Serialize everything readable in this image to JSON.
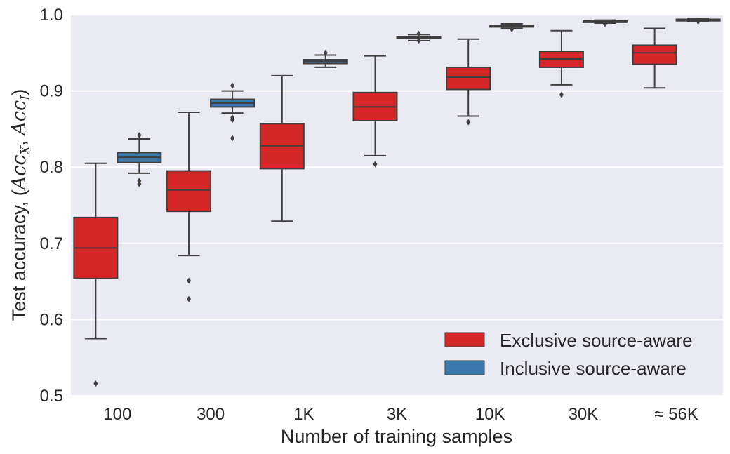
{
  "chart_data": {
    "type": "box",
    "xlabel": "Number of training samples",
    "ylabel": {
      "prefix": "Test accuracy, (",
      "acc1": "Acc",
      "sub1": "X",
      "sep": ", ",
      "acc2": "Acc",
      "sub2": "I",
      "suffix": ")"
    },
    "ylim": [
      0.5,
      1.0
    ],
    "yticks": [
      "0.5",
      "0.6",
      "0.7",
      "0.8",
      "0.9",
      "1.0"
    ],
    "grid": true,
    "legend_position": "lower-right",
    "categories": [
      "100",
      "300",
      "1K",
      "3K",
      "10K",
      "30K",
      "≈ 56K"
    ],
    "series": [
      {
        "name": "Exclusive source-aware",
        "color": "#d62728",
        "boxes": [
          {
            "whislo": 0.575,
            "q1": 0.654,
            "med": 0.694,
            "q3": 0.734,
            "whishi": 0.805,
            "fliers": [
              0.516
            ]
          },
          {
            "whislo": 0.684,
            "q1": 0.742,
            "med": 0.77,
            "q3": 0.795,
            "whishi": 0.872,
            "fliers": [
              0.651,
              0.627
            ]
          },
          {
            "whislo": 0.729,
            "q1": 0.798,
            "med": 0.828,
            "q3": 0.857,
            "whishi": 0.92,
            "fliers": []
          },
          {
            "whislo": 0.815,
            "q1": 0.861,
            "med": 0.879,
            "q3": 0.898,
            "whishi": 0.946,
            "fliers": [
              0.804
            ]
          },
          {
            "whislo": 0.867,
            "q1": 0.902,
            "med": 0.918,
            "q3": 0.931,
            "whishi": 0.968,
            "fliers": [
              0.859
            ]
          },
          {
            "whislo": 0.908,
            "q1": 0.931,
            "med": 0.942,
            "q3": 0.952,
            "whishi": 0.979,
            "fliers": [
              0.895
            ]
          },
          {
            "whislo": 0.904,
            "q1": 0.935,
            "med": 0.95,
            "q3": 0.96,
            "whishi": 0.982,
            "fliers": []
          }
        ]
      },
      {
        "name": "Inclusive source-aware",
        "color": "#3b78b0",
        "boxes": [
          {
            "whislo": 0.792,
            "q1": 0.806,
            "med": 0.813,
            "q3": 0.819,
            "whishi": 0.837,
            "fliers": [
              0.842,
              0.782,
              0.778
            ]
          },
          {
            "whislo": 0.871,
            "q1": 0.879,
            "med": 0.884,
            "q3": 0.889,
            "whishi": 0.9,
            "fliers": [
              0.907,
              0.865,
              0.862,
              0.838
            ]
          },
          {
            "whislo": 0.931,
            "q1": 0.936,
            "med": 0.939,
            "q3": 0.941,
            "whishi": 0.947,
            "fliers": [
              0.95
            ]
          },
          {
            "whislo": 0.966,
            "q1": 0.969,
            "med": 0.97,
            "q3": 0.971,
            "whishi": 0.974,
            "fliers": [
              0.975,
              0.966
            ]
          },
          {
            "whislo": 0.982,
            "q1": 0.984,
            "med": 0.985,
            "q3": 0.986,
            "whishi": 0.988,
            "fliers": [
              0.981
            ]
          },
          {
            "whislo": 0.989,
            "q1": 0.99,
            "med": 0.991,
            "q3": 0.992,
            "whishi": 0.993,
            "fliers": [
              0.988
            ]
          },
          {
            "whislo": 0.991,
            "q1": 0.992,
            "med": 0.993,
            "q3": 0.994,
            "whishi": 0.995,
            "fliers": [
              0.991
            ]
          }
        ]
      }
    ]
  }
}
